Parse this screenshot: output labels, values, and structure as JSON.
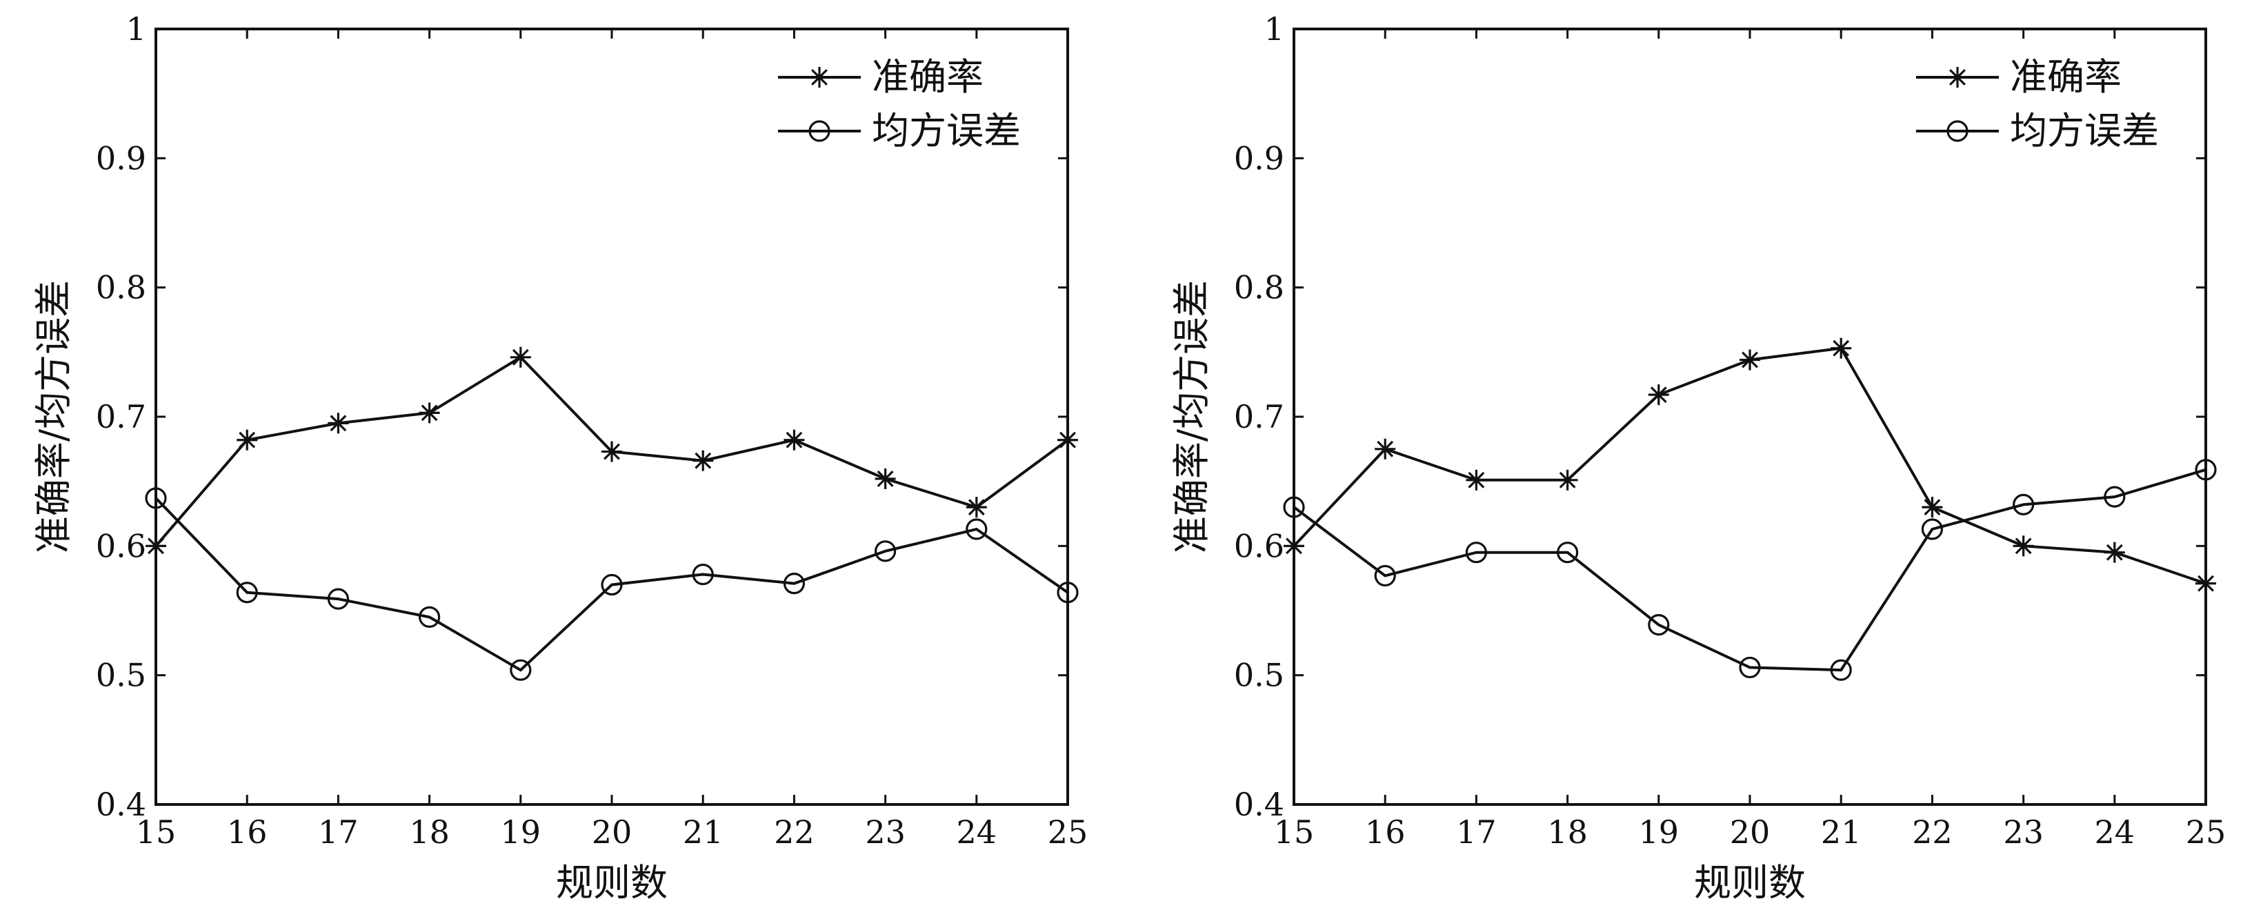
{
  "chart_data": [
    {
      "type": "line",
      "xlabel": "规则数",
      "ylabel": "准确率/均方误差",
      "xlim": [
        15,
        25
      ],
      "ylim": [
        0.4,
        1
      ],
      "x": [
        15,
        16,
        17,
        18,
        19,
        20,
        21,
        22,
        23,
        24,
        25
      ],
      "xticks": [
        "15",
        "16",
        "17",
        "18",
        "19",
        "20",
        "21",
        "22",
        "23",
        "24",
        "25"
      ],
      "yticks": [
        "0.4",
        "0.5",
        "0.6",
        "0.7",
        "0.8",
        "0.9",
        "1"
      ],
      "grid": false,
      "legend_position": "top-right",
      "series": [
        {
          "name": "准确率",
          "marker": "star",
          "values": [
            0.6,
            0.682,
            0.695,
            0.703,
            0.746,
            0.673,
            0.666,
            0.682,
            0.652,
            0.63,
            0.682
          ]
        },
        {
          "name": "均方误差",
          "marker": "circle",
          "values": [
            0.637,
            0.564,
            0.559,
            0.545,
            0.504,
            0.57,
            0.578,
            0.571,
            0.596,
            0.613,
            0.564
          ]
        }
      ]
    },
    {
      "type": "line",
      "xlabel": "规则数",
      "ylabel": "准确率/均方误差",
      "xlim": [
        15,
        25
      ],
      "ylim": [
        0.4,
        1
      ],
      "x": [
        15,
        16,
        17,
        18,
        19,
        20,
        21,
        22,
        23,
        24,
        25
      ],
      "xticks": [
        "15",
        "16",
        "17",
        "18",
        "19",
        "20",
        "21",
        "22",
        "23",
        "24",
        "25"
      ],
      "yticks": [
        "0.4",
        "0.5",
        "0.6",
        "0.7",
        "0.8",
        "0.9",
        "1"
      ],
      "grid": false,
      "legend_position": "top-right",
      "series": [
        {
          "name": "准确率",
          "marker": "star",
          "values": [
            0.6,
            0.675,
            0.651,
            0.651,
            0.717,
            0.744,
            0.753,
            0.63,
            0.6,
            0.595,
            0.571
          ]
        },
        {
          "name": "均方误差",
          "marker": "circle",
          "values": [
            0.63,
            0.577,
            0.595,
            0.595,
            0.539,
            0.506,
            0.504,
            0.613,
            0.632,
            0.638,
            0.659
          ]
        }
      ]
    }
  ]
}
